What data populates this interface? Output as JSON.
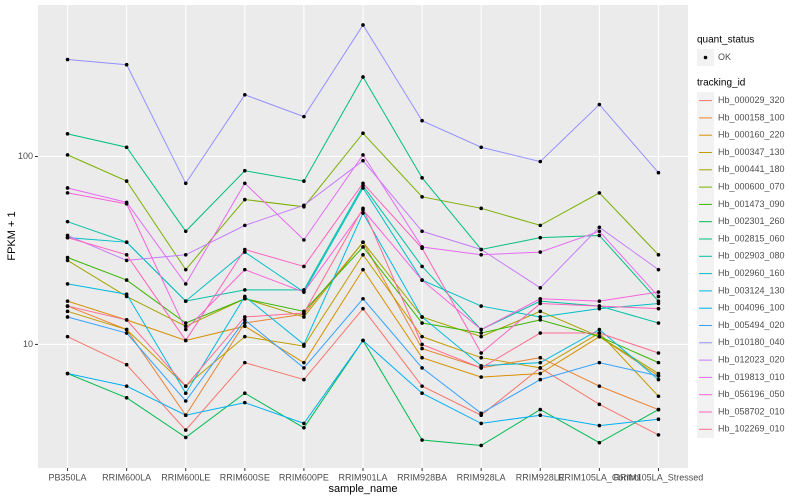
{
  "chart_data": {
    "type": "line",
    "x_label": "sample_name",
    "y_label": "FPKM + 1",
    "categories": [
      "PB350LA",
      "RRIM600LA",
      "RRIM600LE",
      "RRIM600SE",
      "RRIM600PE",
      "RRIM901LA",
      "RRIM928BA",
      "RRIM928LA",
      "RRIM928LE",
      "RRIM105LA_Control",
      "RRIM105LA_Stressed"
    ],
    "yscale": "log",
    "ylim": [
      2.2,
      640
    ],
    "yticks": [
      10,
      100
    ],
    "grid": true,
    "legend_position": "right",
    "point_legend_title": "quant_status",
    "point_legend_label": "OK",
    "point_color": "#000000",
    "legend_title": "tracking_id",
    "series": [
      {
        "name": "Hb_000029_320",
        "color": "#F8766D",
        "values": [
          11,
          7.8,
          3.5,
          8,
          6.5,
          15.5,
          6,
          4.2,
          7.5,
          4.8,
          3.3
        ]
      },
      {
        "name": "Hb_000158_100",
        "color": "#EA8331",
        "values": [
          16,
          12,
          4.2,
          13,
          14.5,
          35,
          9.5,
          7.5,
          8.5,
          6,
          4.5
        ]
      },
      {
        "name": "Hb_000160_220",
        "color": "#D89000",
        "values": [
          17,
          13.5,
          10.5,
          12.5,
          8,
          25,
          8.5,
          6.7,
          7,
          11,
          6.8
        ]
      },
      {
        "name": "Hb_000347_130",
        "color": "#C09B00",
        "values": [
          15,
          12,
          6,
          11,
          9.8,
          30,
          11,
          8.5,
          7.5,
          11.5,
          5.3
        ]
      },
      {
        "name": "Hb_000441_180",
        "color": "#A3A500",
        "values": [
          28,
          18,
          12.5,
          17.5,
          14,
          35,
          14,
          11,
          15,
          11,
          7
        ]
      },
      {
        "name": "Hb_000600_070",
        "color": "#7CAE00",
        "values": [
          102,
          74,
          25,
          59,
          54,
          133,
          61,
          53,
          43,
          64,
          30
        ]
      },
      {
        "name": "Hb_001473_090",
        "color": "#39B600",
        "values": [
          29,
          22,
          13,
          17.5,
          15,
          33,
          13,
          11.5,
          13.5,
          11,
          8
        ]
      },
      {
        "name": "Hb_002301_260",
        "color": "#00BB4E",
        "values": [
          7,
          5.2,
          3.2,
          5.5,
          3.6,
          10.5,
          3.1,
          2.9,
          4.5,
          3,
          4.5
        ]
      },
      {
        "name": "Hb_002815_060",
        "color": "#00BF7D",
        "values": [
          132,
          112,
          40,
          84,
          74,
          265,
          77,
          32,
          37,
          38,
          17
        ]
      },
      {
        "name": "Hb_002903_080",
        "color": "#00C1A3",
        "values": [
          45,
          35,
          17,
          19.5,
          19.5,
          70,
          26,
          12,
          17,
          16,
          13
        ]
      },
      {
        "name": "Hb_002960_160",
        "color": "#00BFC4",
        "values": [
          37,
          35,
          17,
          31,
          19,
          68,
          22,
          16,
          14,
          15.5,
          16.5
        ]
      },
      {
        "name": "Hb_003124_130",
        "color": "#00BAE0",
        "values": [
          21,
          18.5,
          5.5,
          18,
          10,
          50,
          14,
          7.7,
          8,
          12,
          6.5
        ]
      },
      {
        "name": "Hb_004096_100",
        "color": "#00B0F6",
        "values": [
          7,
          6,
          4.2,
          4.9,
          3.8,
          10.5,
          5.5,
          3.8,
          4.2,
          3.7,
          4
        ]
      },
      {
        "name": "Hb_005494_020",
        "color": "#35A2FF",
        "values": [
          14,
          11.5,
          5,
          13.5,
          7.5,
          17.5,
          7.5,
          4.3,
          6.5,
          8,
          6.8
        ]
      },
      {
        "name": "Hb_010180_040",
        "color": "#9590FF",
        "values": [
          328,
          308,
          72,
          213,
          163,
          501,
          155,
          112,
          94,
          189,
          82
        ]
      },
      {
        "name": "Hb_012023_020",
        "color": "#C77CFF",
        "values": [
          38,
          28,
          30,
          43,
          55,
          95,
          40,
          32,
          20,
          42,
          25
        ]
      },
      {
        "name": "Hb_019813_010",
        "color": "#E76BF3",
        "values": [
          68,
          57,
          21,
          72,
          36,
          102,
          33,
          30,
          31,
          40,
          18
        ]
      },
      {
        "name": "Hb_056196_050",
        "color": "#FA62DB",
        "values": [
          64,
          56,
          12,
          25,
          19,
          52,
          22,
          12,
          17.5,
          17,
          19
        ]
      },
      {
        "name": "Hb_058702_010",
        "color": "#FF62BC",
        "values": [
          37,
          30,
          10.5,
          32,
          26,
          72,
          32.5,
          9,
          16.5,
          16,
          15.5
        ]
      },
      {
        "name": "Hb_102269_010",
        "color": "#FF6C91",
        "values": [
          16,
          13.5,
          6,
          14,
          14.7,
          53,
          10,
          7.5,
          11.5,
          11.5,
          9
        ]
      }
    ]
  }
}
